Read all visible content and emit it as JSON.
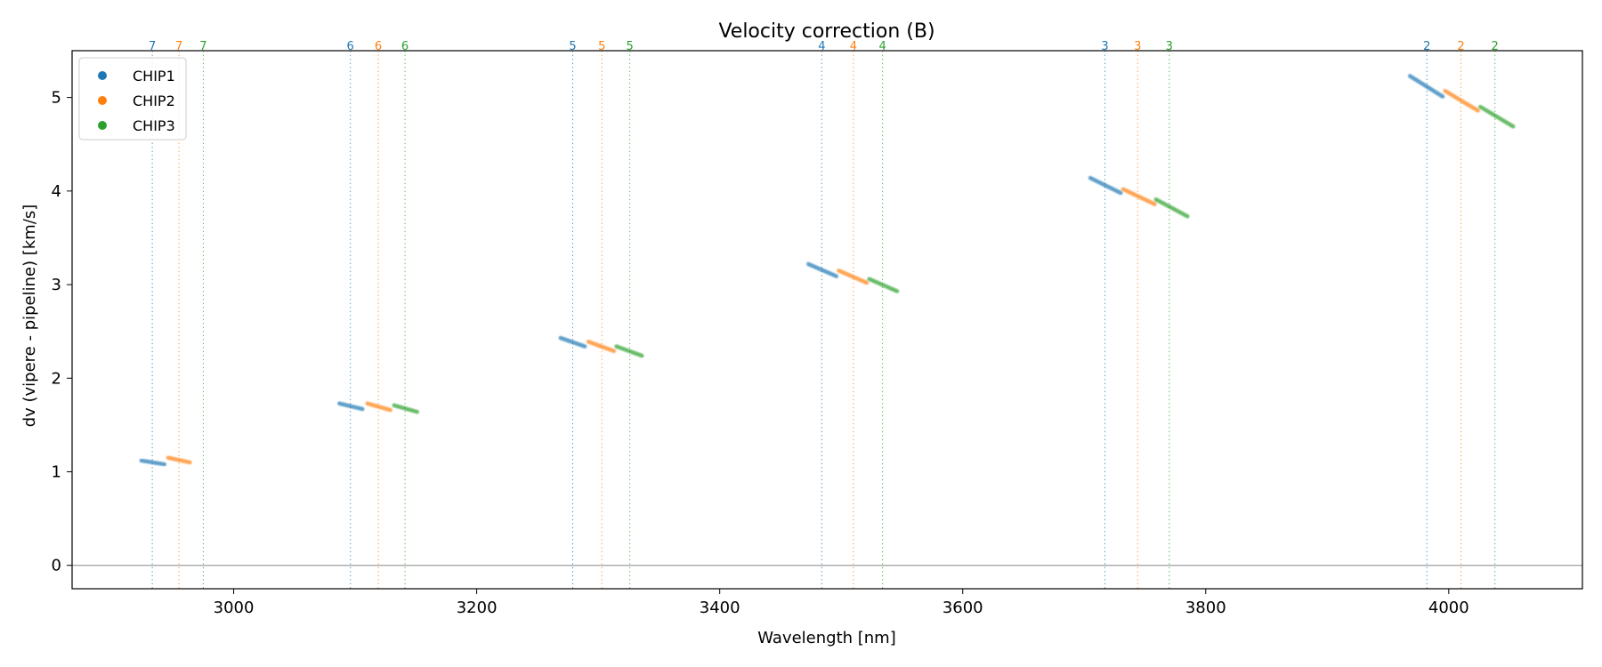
{
  "chart_data": {
    "type": "scatter",
    "title": "Velocity correction (B)",
    "xlabel": "Wavelength [nm]",
    "ylabel": "dv (vipere - pipeline) [km/s]",
    "xlim": [
      2867,
      4110
    ],
    "ylim": [
      -0.25,
      5.5
    ],
    "xticks": [
      3000,
      3200,
      3400,
      3600,
      3800,
      4000
    ],
    "yticks": [
      0,
      1,
      2,
      3,
      4,
      5
    ],
    "legend": {
      "position": "top-left",
      "entries": [
        "CHIP1",
        "CHIP2",
        "CHIP3"
      ]
    },
    "colors": {
      "CHIP1": "#1f77b4",
      "CHIP2": "#ff7f0e",
      "CHIP3": "#2ca02c",
      "zero_line": "#888888"
    },
    "order_markers": [
      {
        "order": "7",
        "chip": "CHIP1",
        "x": 2933
      },
      {
        "order": "7",
        "chip": "CHIP2",
        "x": 2955
      },
      {
        "order": "7",
        "chip": "CHIP3",
        "x": 2975
      },
      {
        "order": "6",
        "chip": "CHIP1",
        "x": 3096
      },
      {
        "order": "6",
        "chip": "CHIP2",
        "x": 3119
      },
      {
        "order": "6",
        "chip": "CHIP3",
        "x": 3141
      },
      {
        "order": "5",
        "chip": "CHIP1",
        "x": 3279
      },
      {
        "order": "5",
        "chip": "CHIP2",
        "x": 3303
      },
      {
        "order": "5",
        "chip": "CHIP3",
        "x": 3326
      },
      {
        "order": "4",
        "chip": "CHIP1",
        "x": 3484
      },
      {
        "order": "4",
        "chip": "CHIP2",
        "x": 3510
      },
      {
        "order": "4",
        "chip": "CHIP3",
        "x": 3534
      },
      {
        "order": "3",
        "chip": "CHIP1",
        "x": 3717
      },
      {
        "order": "3",
        "chip": "CHIP2",
        "x": 3744
      },
      {
        "order": "3",
        "chip": "CHIP3",
        "x": 3770
      },
      {
        "order": "2",
        "chip": "CHIP1",
        "x": 3982
      },
      {
        "order": "2",
        "chip": "CHIP2",
        "x": 4010
      },
      {
        "order": "2",
        "chip": "CHIP3",
        "x": 4038
      }
    ],
    "series": [
      {
        "name": "CHIP1",
        "order": "7",
        "x_start": 2924,
        "x_end": 2943,
        "y_start": 1.12,
        "y_end": 1.08
      },
      {
        "name": "CHIP2",
        "order": "7",
        "x_start": 2946,
        "x_end": 2964,
        "y_start": 1.15,
        "y_end": 1.1
      },
      {
        "name": "CHIP1",
        "order": "6",
        "x_start": 3087,
        "x_end": 3106,
        "y_start": 1.73,
        "y_end": 1.67
      },
      {
        "name": "CHIP2",
        "order": "6",
        "x_start": 3110,
        "x_end": 3129,
        "y_start": 1.73,
        "y_end": 1.66
      },
      {
        "name": "CHIP3",
        "order": "6",
        "x_start": 3132,
        "x_end": 3151,
        "y_start": 1.71,
        "y_end": 1.64
      },
      {
        "name": "CHIP1",
        "order": "5",
        "x_start": 3269,
        "x_end": 3289,
        "y_start": 2.43,
        "y_end": 2.34
      },
      {
        "name": "CHIP2",
        "order": "5",
        "x_start": 3292,
        "x_end": 3313,
        "y_start": 2.39,
        "y_end": 2.29
      },
      {
        "name": "CHIP3",
        "order": "5",
        "x_start": 3315,
        "x_end": 3336,
        "y_start": 2.34,
        "y_end": 2.24
      },
      {
        "name": "CHIP1",
        "order": "4",
        "x_start": 3473,
        "x_end": 3496,
        "y_start": 3.22,
        "y_end": 3.09
      },
      {
        "name": "CHIP2",
        "order": "4",
        "x_start": 3498,
        "x_end": 3521,
        "y_start": 3.15,
        "y_end": 3.02
      },
      {
        "name": "CHIP3",
        "order": "4",
        "x_start": 3523,
        "x_end": 3546,
        "y_start": 3.06,
        "y_end": 2.93
      },
      {
        "name": "CHIP1",
        "order": "3",
        "x_start": 3705,
        "x_end": 3730,
        "y_start": 4.14,
        "y_end": 3.98
      },
      {
        "name": "CHIP2",
        "order": "3",
        "x_start": 3732,
        "x_end": 3758,
        "y_start": 4.02,
        "y_end": 3.86
      },
      {
        "name": "CHIP3",
        "order": "3",
        "x_start": 3759,
        "x_end": 3785,
        "y_start": 3.91,
        "y_end": 3.73
      },
      {
        "name": "CHIP1",
        "order": "2",
        "x_start": 3968,
        "x_end": 3995,
        "y_start": 5.23,
        "y_end": 5.01
      },
      {
        "name": "CHIP2",
        "order": "2",
        "x_start": 3997,
        "x_end": 4024,
        "y_start": 5.07,
        "y_end": 4.86
      },
      {
        "name": "CHIP3",
        "order": "2",
        "x_start": 4026,
        "x_end": 4053,
        "y_start": 4.9,
        "y_end": 4.69
      }
    ]
  }
}
